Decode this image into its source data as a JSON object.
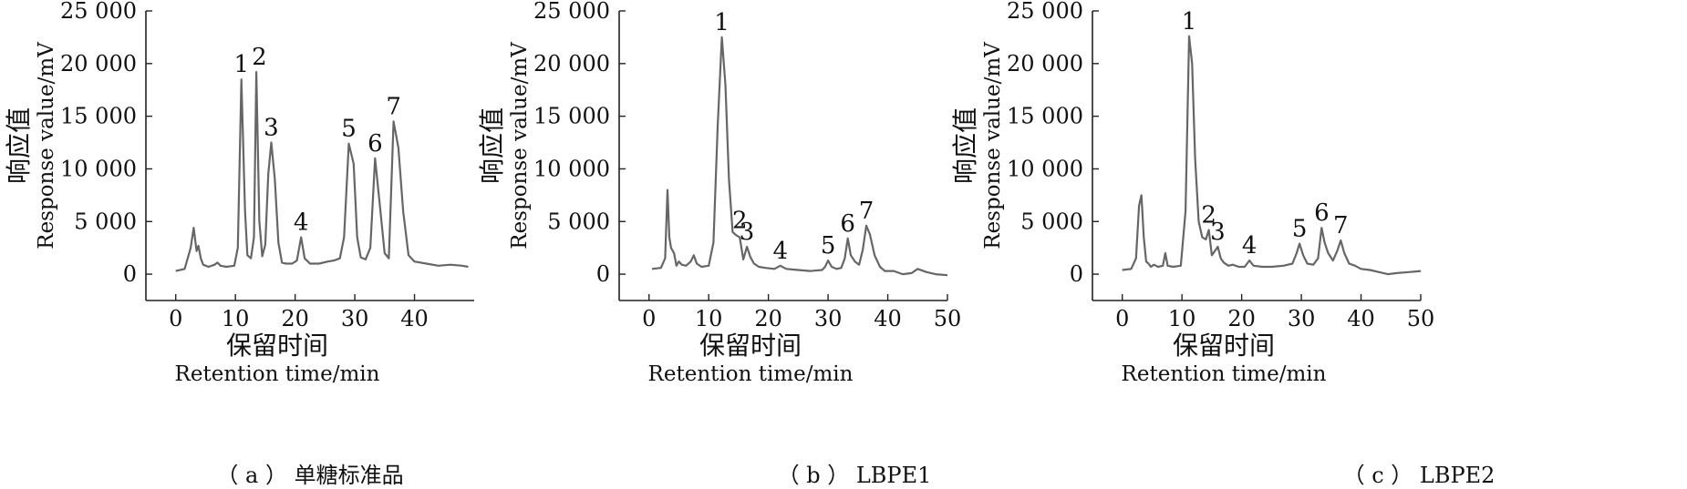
{
  "chart_data": [
    {
      "type": "line",
      "panel_caption": "（ a ） 单糖标准品",
      "xlabel_cn": "保留时间",
      "xlabel_en": "Retention time/min",
      "ylabel_cn": "响应值",
      "ylabel_en": "Response value/mV",
      "xlim": [
        -5,
        50
      ],
      "ylim": [
        -2500,
        25000
      ],
      "x_ticks": [
        "0",
        "10",
        "20",
        "30",
        "40"
      ],
      "x_tick_values": [
        0,
        10,
        20,
        30,
        40
      ],
      "y_ticks": [
        "0",
        "5 000",
        "10 000",
        "15 000",
        "20 000",
        "25 000"
      ],
      "y_tick_values": [
        0,
        5000,
        10000,
        15000,
        20000,
        25000
      ],
      "grid": false,
      "line_color": "#666666",
      "series": [
        {
          "x": [
            0,
            1.5,
            2.5,
            3,
            3.5,
            3.8,
            4.2,
            4.6,
            5.5,
            6.5,
            7,
            7.5,
            8.5,
            9.8,
            10.4,
            11,
            11.6,
            12,
            12.6,
            13.1,
            13.5,
            14,
            14.5,
            15,
            15.5,
            16,
            16.6,
            17.2,
            17.8,
            18.5,
            19.5,
            20.3,
            21,
            21.6,
            22.5,
            24,
            25.5,
            26.5,
            27.5,
            28.2,
            29,
            29.8,
            30.4,
            31,
            31.8,
            32.6,
            33.4,
            34.2,
            35,
            35.7,
            36.5,
            37.3,
            38.1,
            39,
            40,
            42,
            44,
            46,
            48,
            49
          ],
          "y": [
            300,
            500,
            2500,
            4400,
            2200,
            2700,
            1500,
            900,
            700,
            900,
            1100,
            800,
            700,
            800,
            2500,
            18500,
            6000,
            1800,
            1500,
            3500,
            19200,
            5000,
            1700,
            2800,
            9500,
            12500,
            9000,
            3000,
            1100,
            1000,
            1000,
            1300,
            3500,
            1500,
            1000,
            1000,
            1200,
            1300,
            1500,
            3500,
            12400,
            10500,
            3500,
            1600,
            1400,
            2500,
            11000,
            6500,
            2000,
            1500,
            14500,
            12000,
            6000,
            1800,
            1200,
            1000,
            800,
            900,
            800,
            700
          ]
        }
      ],
      "annotations": [
        {
          "label": "1",
          "x": 11,
          "y": 18500
        },
        {
          "label": "2",
          "x": 14,
          "y": 19200
        },
        {
          "label": "3",
          "x": 16,
          "y": 12500
        },
        {
          "label": "4",
          "x": 21,
          "y": 3500
        },
        {
          "label": "5",
          "x": 29,
          "y": 12400
        },
        {
          "label": "6",
          "x": 33.4,
          "y": 11000
        },
        {
          "label": "7",
          "x": 36.5,
          "y": 14500
        }
      ]
    },
    {
      "type": "line",
      "panel_caption": "（ b ） LBPE1",
      "xlabel_cn": "保留时间",
      "xlabel_en": "Retention time/min",
      "ylabel_cn": "响应值",
      "ylabel_en": "Response value/mV",
      "xlim": [
        -5,
        50
      ],
      "ylim": [
        -2500,
        25000
      ],
      "x_ticks": [
        "0",
        "10",
        "20",
        "30",
        "40",
        "50"
      ],
      "x_tick_values": [
        0,
        10,
        20,
        30,
        40,
        50
      ],
      "y_ticks": [
        "0",
        "5 000",
        "10 000",
        "15 000",
        "20 000",
        "25 000"
      ],
      "y_tick_values": [
        0,
        5000,
        10000,
        15000,
        20000,
        25000
      ],
      "grid": false,
      "line_color": "#666666",
      "series": [
        {
          "x": [
            0.5,
            2,
            2.7,
            3.1,
            3.4,
            3.7,
            4.2,
            4.6,
            5,
            5.5,
            6.2,
            7,
            7.5,
            8,
            8.8,
            10,
            10.8,
            11.5,
            12.2,
            12.8,
            13.4,
            14,
            14.6,
            15.2,
            15.8,
            16.4,
            17,
            17.6,
            18.4,
            19.5,
            21,
            22,
            23,
            25,
            27,
            29,
            29.5,
            30,
            30.6,
            31.4,
            32.2,
            32.8,
            33.3,
            33.8,
            34.5,
            35.2,
            35.8,
            36.4,
            37,
            37.8,
            38.7,
            39.5,
            41,
            42.5,
            44,
            45,
            46.5,
            48,
            50
          ],
          "y": [
            500,
            600,
            1500,
            8000,
            3500,
            2500,
            2000,
            800,
            1200,
            900,
            800,
            1200,
            1800,
            1000,
            700,
            800,
            3000,
            14000,
            22500,
            18000,
            9000,
            4000,
            3700,
            3500,
            1400,
            2600,
            1600,
            1000,
            700,
            600,
            500,
            800,
            500,
            400,
            300,
            400,
            700,
            1300,
            700,
            500,
            600,
            1500,
            3400,
            1800,
            1200,
            900,
            2300,
            4600,
            3800,
            1800,
            700,
            300,
            300,
            0,
            100,
            500,
            200,
            0,
            -100
          ]
        }
      ],
      "annotations": [
        {
          "label": "1",
          "x": 12.2,
          "y": 22500
        },
        {
          "label": "2",
          "x": 15.2,
          "y": 3700
        },
        {
          "label": "3",
          "x": 16.4,
          "y": 2600
        },
        {
          "label": "4",
          "x": 22,
          "y": 800
        },
        {
          "label": "5",
          "x": 30,
          "y": 1300
        },
        {
          "label": "6",
          "x": 33.3,
          "y": 3400
        },
        {
          "label": "7",
          "x": 36.4,
          "y": 4600
        }
      ]
    },
    {
      "type": "line",
      "panel_caption": "（ c ） LBPE2",
      "xlabel_cn": "保留时间",
      "xlabel_en": "Retention time/min",
      "ylabel_cn": "响应值",
      "ylabel_en": "Response value/mV",
      "xlim": [
        -5,
        50
      ],
      "ylim": [
        -2500,
        25000
      ],
      "x_ticks": [
        "0",
        "10",
        "20",
        "30",
        "40",
        "50"
      ],
      "x_tick_values": [
        0,
        10,
        20,
        30,
        40,
        50
      ],
      "y_ticks": [
        "0",
        "5 000",
        "10 000",
        "15 000",
        "20 000",
        "25 000"
      ],
      "y_tick_values": [
        0,
        5000,
        10000,
        15000,
        20000,
        25000
      ],
      "grid": false,
      "line_color": "#666666",
      "series": [
        {
          "x": [
            0,
            1.5,
            2.3,
            2.8,
            3.2,
            3.6,
            4,
            4.4,
            4.8,
            5.3,
            6,
            6.8,
            7.2,
            7.6,
            8.5,
            9.8,
            10.6,
            11.2,
            11.7,
            12.2,
            12.8,
            13.4,
            14,
            14.5,
            15,
            15.5,
            16,
            16.5,
            17,
            17.8,
            18.5,
            19.5,
            20.5,
            21.3,
            22,
            23.5,
            25,
            27,
            28.5,
            29.2,
            29.7,
            30.3,
            31,
            32,
            32.8,
            33.4,
            33.9,
            34.5,
            35.3,
            36,
            36.6,
            37.2,
            38,
            39,
            40,
            41.5,
            43,
            44.5,
            46,
            48,
            50
          ],
          "y": [
            400,
            500,
            1500,
            6500,
            7500,
            3500,
            1200,
            1000,
            700,
            900,
            700,
            800,
            2000,
            800,
            700,
            800,
            6000,
            22600,
            20000,
            11000,
            5000,
            3500,
            3300,
            4200,
            1800,
            2200,
            2600,
            1500,
            1100,
            800,
            900,
            700,
            700,
            1300,
            800,
            700,
            700,
            800,
            1000,
            2000,
            2900,
            1800,
            1000,
            900,
            1500,
            4400,
            3000,
            2000,
            1300,
            2200,
            3200,
            2000,
            1000,
            800,
            500,
            400,
            200,
            0,
            100,
            200,
            300
          ]
        }
      ],
      "annotations": [
        {
          "label": "1",
          "x": 11.2,
          "y": 22600
        },
        {
          "label": "2",
          "x": 14.5,
          "y": 4200
        },
        {
          "label": "3",
          "x": 16,
          "y": 2600
        },
        {
          "label": "4",
          "x": 21.3,
          "y": 1300
        },
        {
          "label": "5",
          "x": 29.7,
          "y": 2900
        },
        {
          "label": "6",
          "x": 33.4,
          "y": 4400
        },
        {
          "label": "7",
          "x": 36.6,
          "y": 3200
        }
      ]
    }
  ]
}
